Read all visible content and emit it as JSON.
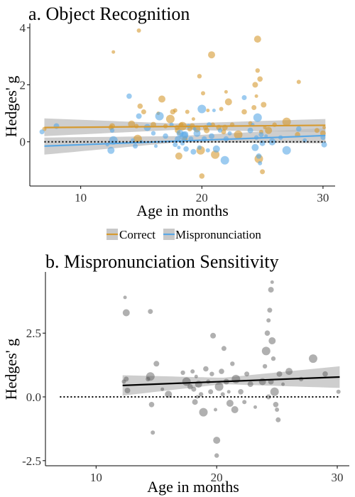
{
  "colors": {
    "correct": "#d69a30",
    "mispronunciation": "#5aa8e6",
    "points_b": "#505050",
    "ribbon": "#bdbdbd",
    "trend_b": "#000000"
  },
  "chart_data": [
    {
      "type": "scatter",
      "title": "a. Object Recognition",
      "xlabel": "Age in months",
      "ylabel": "Hedges' g",
      "xlim": [
        5.8,
        31.0
      ],
      "ylim": [
        -1.55,
        4.15
      ],
      "xticks": [
        10,
        20,
        30
      ],
      "yticks": [
        0,
        2,
        4
      ],
      "x_tick_labels": [
        "10",
        "20",
        "30"
      ],
      "y_tick_labels": [
        "0",
        "2",
        "4"
      ],
      "reference_line_y": 0,
      "legend_position": "bottom",
      "legend": [
        "Correct",
        "Mispronunciation"
      ],
      "series": [
        {
          "name": "Correct",
          "trend": {
            "x": [
              7,
              30.2
            ],
            "y": [
              0.5,
              0.58
            ]
          },
          "band": {
            "x": [
              7,
              18,
              30.2
            ],
            "lo": [
              0.2,
              0.42,
              0.33
            ],
            "hi": [
              0.82,
              0.64,
              0.8
            ]
          },
          "points": [
            [
              7,
              0.45
            ],
            [
              12.5,
              0.5
            ],
            [
              12.6,
              0.55
            ],
            [
              12.7,
              3.15
            ],
            [
              14.2,
              0.62
            ],
            [
              14.6,
              0.55
            ],
            [
              14.7,
              0.1
            ],
            [
              14.9,
              1.25
            ],
            [
              14.8,
              3.9
            ],
            [
              15.2,
              1.05
            ],
            [
              16.0,
              0.6
            ],
            [
              16.4,
              1.0
            ],
            [
              16.7,
              1.5
            ],
            [
              17.0,
              0.55
            ],
            [
              17.4,
              0.8
            ],
            [
              17.6,
              1.05
            ],
            [
              17.8,
              1.1
            ],
            [
              17.95,
              0.5
            ],
            [
              18.0,
              0.4
            ],
            [
              18.1,
              0.3
            ],
            [
              18.1,
              -0.5
            ],
            [
              18.3,
              0.6
            ],
            [
              18.4,
              0.55
            ],
            [
              18.6,
              0.1
            ],
            [
              18.8,
              1.05
            ],
            [
              19.0,
              0.45
            ],
            [
              19.2,
              0.55
            ],
            [
              19.3,
              0.8
            ],
            [
              19.6,
              0.45
            ],
            [
              19.8,
              2.3
            ],
            [
              19.9,
              -0.3
            ],
            [
              20.0,
              -1.2
            ],
            [
              20.1,
              1.7
            ],
            [
              20.3,
              0.5
            ],
            [
              20.4,
              0.4
            ],
            [
              20.5,
              1.1
            ],
            [
              20.8,
              3.05
            ],
            [
              20.9,
              0.6
            ],
            [
              21.1,
              -0.45
            ],
            [
              21.4,
              0.5
            ],
            [
              21.6,
              1.15
            ],
            [
              21.8,
              0.35
            ],
            [
              21.9,
              0.5
            ],
            [
              22.0,
              1.75
            ],
            [
              22.2,
              1.4
            ],
            [
              22.5,
              0.6
            ],
            [
              23.0,
              0.25
            ],
            [
              23.5,
              1.05
            ],
            [
              24.0,
              0.65
            ],
            [
              24.3,
              1.2
            ],
            [
              24.4,
              2.0
            ],
            [
              24.5,
              1.6
            ],
            [
              24.6,
              3.6
            ],
            [
              24.6,
              2.5
            ],
            [
              24.7,
              -0.6
            ],
            [
              24.8,
              2.2
            ],
            [
              24.9,
              0.35
            ],
            [
              25.0,
              -1.05
            ],
            [
              25.1,
              1.3
            ],
            [
              25.2,
              0.5
            ],
            [
              25.5,
              0.4
            ],
            [
              26.0,
              0.6
            ],
            [
              27.0,
              0.7
            ],
            [
              27.9,
              0.25
            ],
            [
              28.0,
              2.1
            ],
            [
              29.5,
              0.4
            ],
            [
              30.0,
              0.3
            ],
            [
              30.1,
              0.5
            ]
          ]
        },
        {
          "name": "Mispronunciation",
          "trend": {
            "x": [
              7,
              30.2
            ],
            "y": [
              -0.15,
              0.22
            ]
          },
          "band": {
            "x": [
              7,
              18,
              30.2
            ],
            "lo": [
              -0.45,
              -0.02,
              -0.05
            ],
            "hi": [
              0.15,
              0.2,
              0.48
            ]
          },
          "points": [
            [
              6.8,
              0.35
            ],
            [
              8.0,
              0.55
            ],
            [
              12.2,
              -0.1
            ],
            [
              12.5,
              -0.3
            ],
            [
              12.6,
              0.4
            ],
            [
              12.7,
              0.05
            ],
            [
              14.0,
              1.6
            ],
            [
              14.3,
              0.05
            ],
            [
              14.5,
              -0.15
            ],
            [
              14.8,
              0.9
            ],
            [
              15.0,
              0.0
            ],
            [
              15.5,
              0.5
            ],
            [
              16.0,
              0.3
            ],
            [
              16.5,
              0.9
            ],
            [
              17.0,
              0.2
            ],
            [
              17.5,
              0.6
            ],
            [
              17.8,
              -0.1
            ],
            [
              18.0,
              0.1
            ],
            [
              18.1,
              -0.2
            ],
            [
              18.2,
              0.3
            ],
            [
              18.4,
              -0.05
            ],
            [
              18.5,
              0.2
            ],
            [
              18.7,
              -0.25
            ],
            [
              18.9,
              0.55
            ],
            [
              19.1,
              0.1
            ],
            [
              19.3,
              -0.35
            ],
            [
              19.4,
              0.45
            ],
            [
              19.6,
              0.3
            ],
            [
              19.8,
              -0.2
            ],
            [
              20.0,
              1.15
            ],
            [
              20.2,
              0.1
            ],
            [
              20.5,
              -0.3
            ],
            [
              20.6,
              0.6
            ],
            [
              20.8,
              0.2
            ],
            [
              21.0,
              1.1
            ],
            [
              21.2,
              -0.25
            ],
            [
              21.5,
              0.4
            ],
            [
              21.9,
              -0.65
            ],
            [
              22.0,
              0.1
            ],
            [
              22.3,
              0.3
            ],
            [
              23.5,
              1.55
            ],
            [
              24.0,
              0.4
            ],
            [
              24.2,
              0.6
            ],
            [
              24.4,
              -0.2
            ],
            [
              24.5,
              0.15
            ],
            [
              24.6,
              0.85
            ],
            [
              24.7,
              -0.5
            ],
            [
              24.8,
              -0.75
            ],
            [
              24.9,
              0.25
            ],
            [
              25.0,
              -0.05
            ],
            [
              25.3,
              0.2
            ],
            [
              25.8,
              0.0
            ],
            [
              26.5,
              0.15
            ],
            [
              27.0,
              -0.3
            ],
            [
              28.0,
              0.45
            ],
            [
              28.5,
              0.05
            ],
            [
              30.0,
              0.15
            ],
            [
              30.1,
              -0.1
            ],
            [
              16.2,
              -0.15
            ],
            [
              18.6,
              0.25
            ]
          ]
        }
      ]
    },
    {
      "type": "scatter",
      "title": "b. Mispronunciation Sensitivity",
      "xlabel": "Age in months",
      "ylabel": "Hedges' g",
      "xlim": [
        5.8,
        31.0
      ],
      "ylim": [
        -2.7,
        4.9
      ],
      "xticks": [
        10,
        20,
        30
      ],
      "yticks": [
        -2.5,
        0.0,
        2.5
      ],
      "x_tick_labels": [
        "10",
        "20",
        "30"
      ],
      "y_tick_labels": [
        "-2.5",
        "0.0",
        "2.5"
      ],
      "reference_line_y": 0,
      "series": [
        {
          "name": "",
          "trend": {
            "x": [
              12.2,
              30.2
            ],
            "y": [
              0.45,
              0.78
            ]
          },
          "band": {
            "x": [
              12.2,
              20.5,
              30.2
            ],
            "lo": [
              0.05,
              0.5,
              0.35
            ],
            "hi": [
              0.85,
              0.75,
              1.2
            ]
          },
          "points": [
            [
              12.3,
              0.6
            ],
            [
              12.5,
              0.7
            ],
            [
              12.6,
              0.25
            ],
            [
              12.4,
              3.9
            ],
            [
              12.5,
              3.3
            ],
            [
              14.3,
              0.7
            ],
            [
              14.5,
              0.8
            ],
            [
              14.6,
              -0.3
            ],
            [
              14.7,
              -1.4
            ],
            [
              14.5,
              3.35
            ],
            [
              15.0,
              1.3
            ],
            [
              15.5,
              0.3
            ],
            [
              16.0,
              0.1
            ],
            [
              17.2,
              0.95
            ],
            [
              17.5,
              0.6
            ],
            [
              17.8,
              0.4
            ],
            [
              18.0,
              1.0
            ],
            [
              18.1,
              0.3
            ],
            [
              18.2,
              -0.2
            ],
            [
              18.3,
              0.8
            ],
            [
              18.5,
              0.5
            ],
            [
              18.7,
              0.1
            ],
            [
              18.9,
              -0.6
            ],
            [
              19.1,
              1.1
            ],
            [
              19.3,
              0.6
            ],
            [
              19.5,
              0.2
            ],
            [
              19.7,
              2.4
            ],
            [
              19.9,
              -0.5
            ],
            [
              20.0,
              -1.7
            ],
            [
              20.0,
              -2.3
            ],
            [
              20.2,
              0.4
            ],
            [
              20.4,
              1.0
            ],
            [
              20.5,
              0.1
            ],
            [
              20.6,
              1.9
            ],
            [
              20.8,
              0.6
            ],
            [
              21.0,
              0.2
            ],
            [
              21.1,
              -0.25
            ],
            [
              21.3,
              1.3
            ],
            [
              21.6,
              0.7
            ],
            [
              22.0,
              0.2
            ],
            [
              22.3,
              -0.2
            ],
            [
              22.5,
              0.9
            ],
            [
              22.8,
              0.5
            ],
            [
              23.2,
              -0.4
            ],
            [
              23.8,
              0.6
            ],
            [
              24.0,
              1.2
            ],
            [
              24.1,
              1.8
            ],
            [
              24.2,
              2.5
            ],
            [
              24.3,
              3.0
            ],
            [
              24.4,
              3.4
            ],
            [
              24.5,
              4.2
            ],
            [
              24.6,
              4.5
            ],
            [
              24.6,
              2.2
            ],
            [
              24.7,
              1.5
            ],
            [
              24.8,
              0.2
            ],
            [
              24.9,
              -0.3
            ],
            [
              25.0,
              -0.5
            ],
            [
              25.1,
              -0.9
            ],
            [
              25.2,
              0.9
            ],
            [
              25.5,
              0.5
            ],
            [
              26.0,
              1.0
            ],
            [
              27.0,
              0.7
            ],
            [
              28.0,
              1.5
            ],
            [
              29.0,
              0.9
            ],
            [
              30.1,
              0.2
            ],
            [
              24.3,
              0.0
            ],
            [
              24.5,
              0.6
            ],
            [
              18.4,
              0.0
            ],
            [
              21.5,
              -0.5
            ],
            [
              19.6,
              0.9
            ]
          ]
        }
      ]
    }
  ]
}
